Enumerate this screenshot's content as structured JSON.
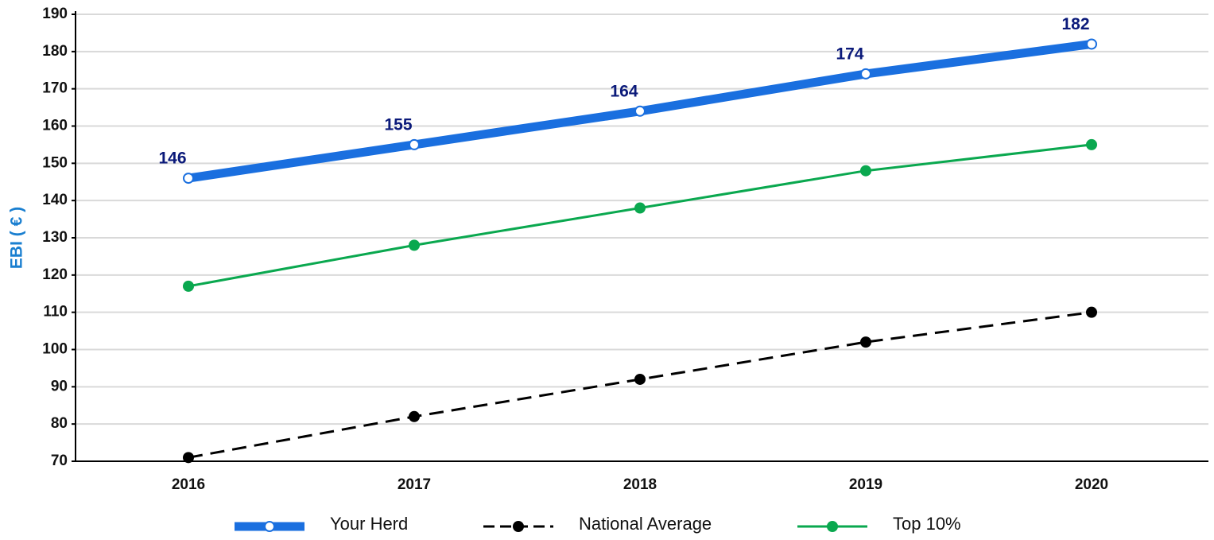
{
  "chart_data": {
    "type": "line",
    "y_label": "EBI ( € )",
    "categories": [
      "2016",
      "2017",
      "2018",
      "2019",
      "2020"
    ],
    "series": [
      {
        "name": "Your Herd",
        "color": "#1a6fdf",
        "values": [
          146,
          155,
          164,
          174,
          182
        ],
        "data_labels": true
      },
      {
        "name": "National Average",
        "color": "#000000",
        "values": [
          71,
          82,
          92,
          102,
          110
        ],
        "dashed": true
      },
      {
        "name": "Top 10%",
        "color": "#0aa84f",
        "values": [
          117,
          128,
          138,
          148,
          155
        ]
      }
    ],
    "ylim": [
      70,
      190
    ],
    "yticks": [
      70,
      80,
      90,
      100,
      110,
      120,
      130,
      140,
      150,
      160,
      170,
      180,
      190
    ],
    "grid": true,
    "legend": "bottom"
  }
}
